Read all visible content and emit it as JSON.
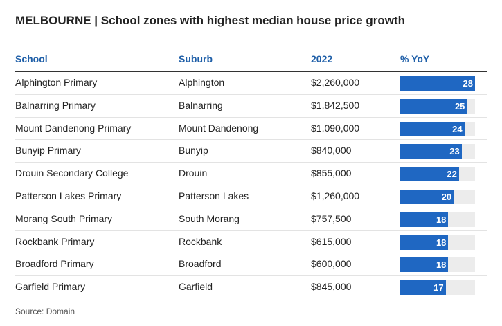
{
  "title": "MELBOURNE | School zones with highest median house price growth",
  "columns": {
    "school": "School",
    "suburb": "Suburb",
    "price": "2022",
    "yoy": "% YoY"
  },
  "source": "Source: Domain",
  "colors": {
    "bar": "#1f67c2",
    "track": "#ececec",
    "header": "#1f5fa8"
  },
  "chart_data": {
    "type": "table",
    "columns": [
      "School",
      "Suburb",
      "2022",
      "% YoY"
    ],
    "rows": [
      {
        "school": "Alphington Primary",
        "suburb": "Alphington",
        "price": "$2,260,000",
        "yoy": 28
      },
      {
        "school": "Balnarring Primary",
        "suburb": "Balnarring",
        "price": "$1,842,500",
        "yoy": 25
      },
      {
        "school": "Mount Dandenong Primary",
        "suburb": "Mount Dandenong",
        "price": "$1,090,000",
        "yoy": 24
      },
      {
        "school": "Bunyip Primary",
        "suburb": "Bunyip",
        "price": "$840,000",
        "yoy": 23
      },
      {
        "school": "Drouin Secondary College",
        "suburb": "Drouin",
        "price": "$855,000",
        "yoy": 22
      },
      {
        "school": "Patterson Lakes Primary",
        "suburb": "Patterson Lakes",
        "price": "$1,260,000",
        "yoy": 20
      },
      {
        "school": "Morang South Primary",
        "suburb": "South Morang",
        "price": "$757,500",
        "yoy": 18
      },
      {
        "school": "Rockbank Primary",
        "suburb": "Rockbank",
        "price": "$615,000",
        "yoy": 18
      },
      {
        "school": "Broadford Primary",
        "suburb": "Broadford",
        "price": "$600,000",
        "yoy": 18
      },
      {
        "school": "Garfield Primary",
        "suburb": "Garfield",
        "price": "$845,000",
        "yoy": 17
      }
    ],
    "yoy_scale_max": 28
  }
}
